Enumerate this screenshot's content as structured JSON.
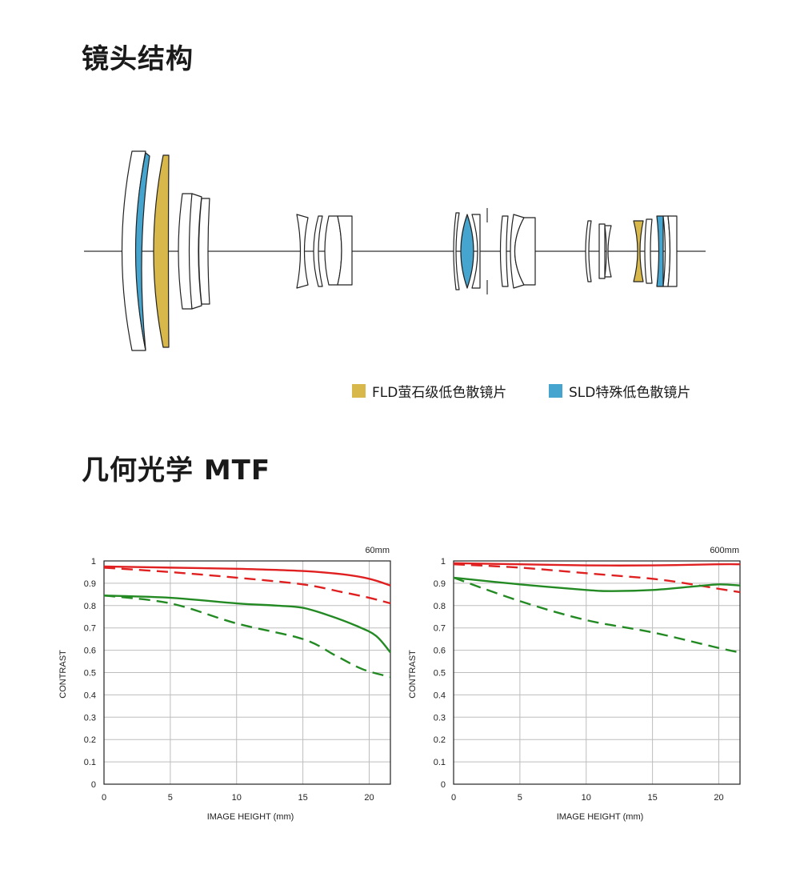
{
  "sections": {
    "lens_title": "镜头结构",
    "mtf_title": "几何光学 MTF"
  },
  "legend": [
    {
      "label": "FLD萤石级低色散镜片",
      "color": "#d8b84a"
    },
    {
      "label": "SLD特殊低色散镜片",
      "color": "#46a5cf"
    }
  ],
  "colors": {
    "red": "#e02020",
    "green": "#238a23",
    "grid": "#bdbdbd"
  },
  "chart_data": [
    {
      "type": "line",
      "title": "60mm",
      "xlabel": "IMAGE HEIGHT (mm)",
      "ylabel": "CONTRAST",
      "xlim": [
        0,
        21.6
      ],
      "ylim": [
        0,
        1
      ],
      "xticks": [
        "0",
        "5",
        "10",
        "15",
        "20"
      ],
      "yticks": [
        "0",
        "0.1",
        "0.2",
        "0.3",
        "0.4",
        "0.5",
        "0.6",
        "0.7",
        "0.8",
        "0.9",
        "1"
      ],
      "series": [
        {
          "color": "red",
          "style": "solid",
          "x": [
            0,
            5,
            10,
            15,
            18,
            20,
            21.6
          ],
          "y": [
            0.975,
            0.97,
            0.965,
            0.955,
            0.94,
            0.92,
            0.89
          ]
        },
        {
          "color": "red",
          "style": "dashed",
          "x": [
            0,
            5,
            10,
            15,
            18,
            20,
            21.6
          ],
          "y": [
            0.97,
            0.95,
            0.925,
            0.895,
            0.86,
            0.835,
            0.81
          ]
        },
        {
          "color": "green",
          "style": "solid",
          "x": [
            0,
            5,
            10,
            13,
            15,
            17,
            19,
            20.5,
            21.6
          ],
          "y": [
            0.845,
            0.835,
            0.81,
            0.8,
            0.79,
            0.755,
            0.71,
            0.665,
            0.59
          ]
        },
        {
          "color": "green",
          "style": "dashed",
          "x": [
            0,
            5,
            10,
            15,
            17.5,
            19.5,
            21.6
          ],
          "y": [
            0.845,
            0.81,
            0.72,
            0.65,
            0.575,
            0.515,
            0.48
          ]
        }
      ]
    },
    {
      "type": "line",
      "title": "600mm",
      "xlabel": "IMAGE HEIGHT (mm)",
      "ylabel": "CONTRAST",
      "xlim": [
        0,
        21.6
      ],
      "ylim": [
        0,
        1
      ],
      "xticks": [
        "0",
        "5",
        "10",
        "15",
        "20"
      ],
      "yticks": [
        "0",
        "0.1",
        "0.2",
        "0.3",
        "0.4",
        "0.5",
        "0.6",
        "0.7",
        "0.8",
        "0.9",
        "1"
      ],
      "series": [
        {
          "color": "red",
          "style": "solid",
          "x": [
            0,
            5,
            10,
            15,
            20,
            21.6
          ],
          "y": [
            0.99,
            0.985,
            0.98,
            0.98,
            0.985,
            0.985
          ]
        },
        {
          "color": "red",
          "style": "dashed",
          "x": [
            0,
            5,
            10,
            15,
            18,
            20,
            21.6
          ],
          "y": [
            0.985,
            0.97,
            0.945,
            0.92,
            0.895,
            0.875,
            0.86
          ]
        },
        {
          "color": "green",
          "style": "solid",
          "x": [
            0,
            5,
            10,
            12,
            15,
            18,
            20,
            21.6
          ],
          "y": [
            0.925,
            0.895,
            0.87,
            0.865,
            0.87,
            0.885,
            0.895,
            0.89
          ]
        },
        {
          "color": "green",
          "style": "dashed",
          "x": [
            0,
            5,
            10,
            15,
            20,
            21.6
          ],
          "y": [
            0.925,
            0.82,
            0.735,
            0.68,
            0.61,
            0.59
          ]
        }
      ]
    }
  ]
}
